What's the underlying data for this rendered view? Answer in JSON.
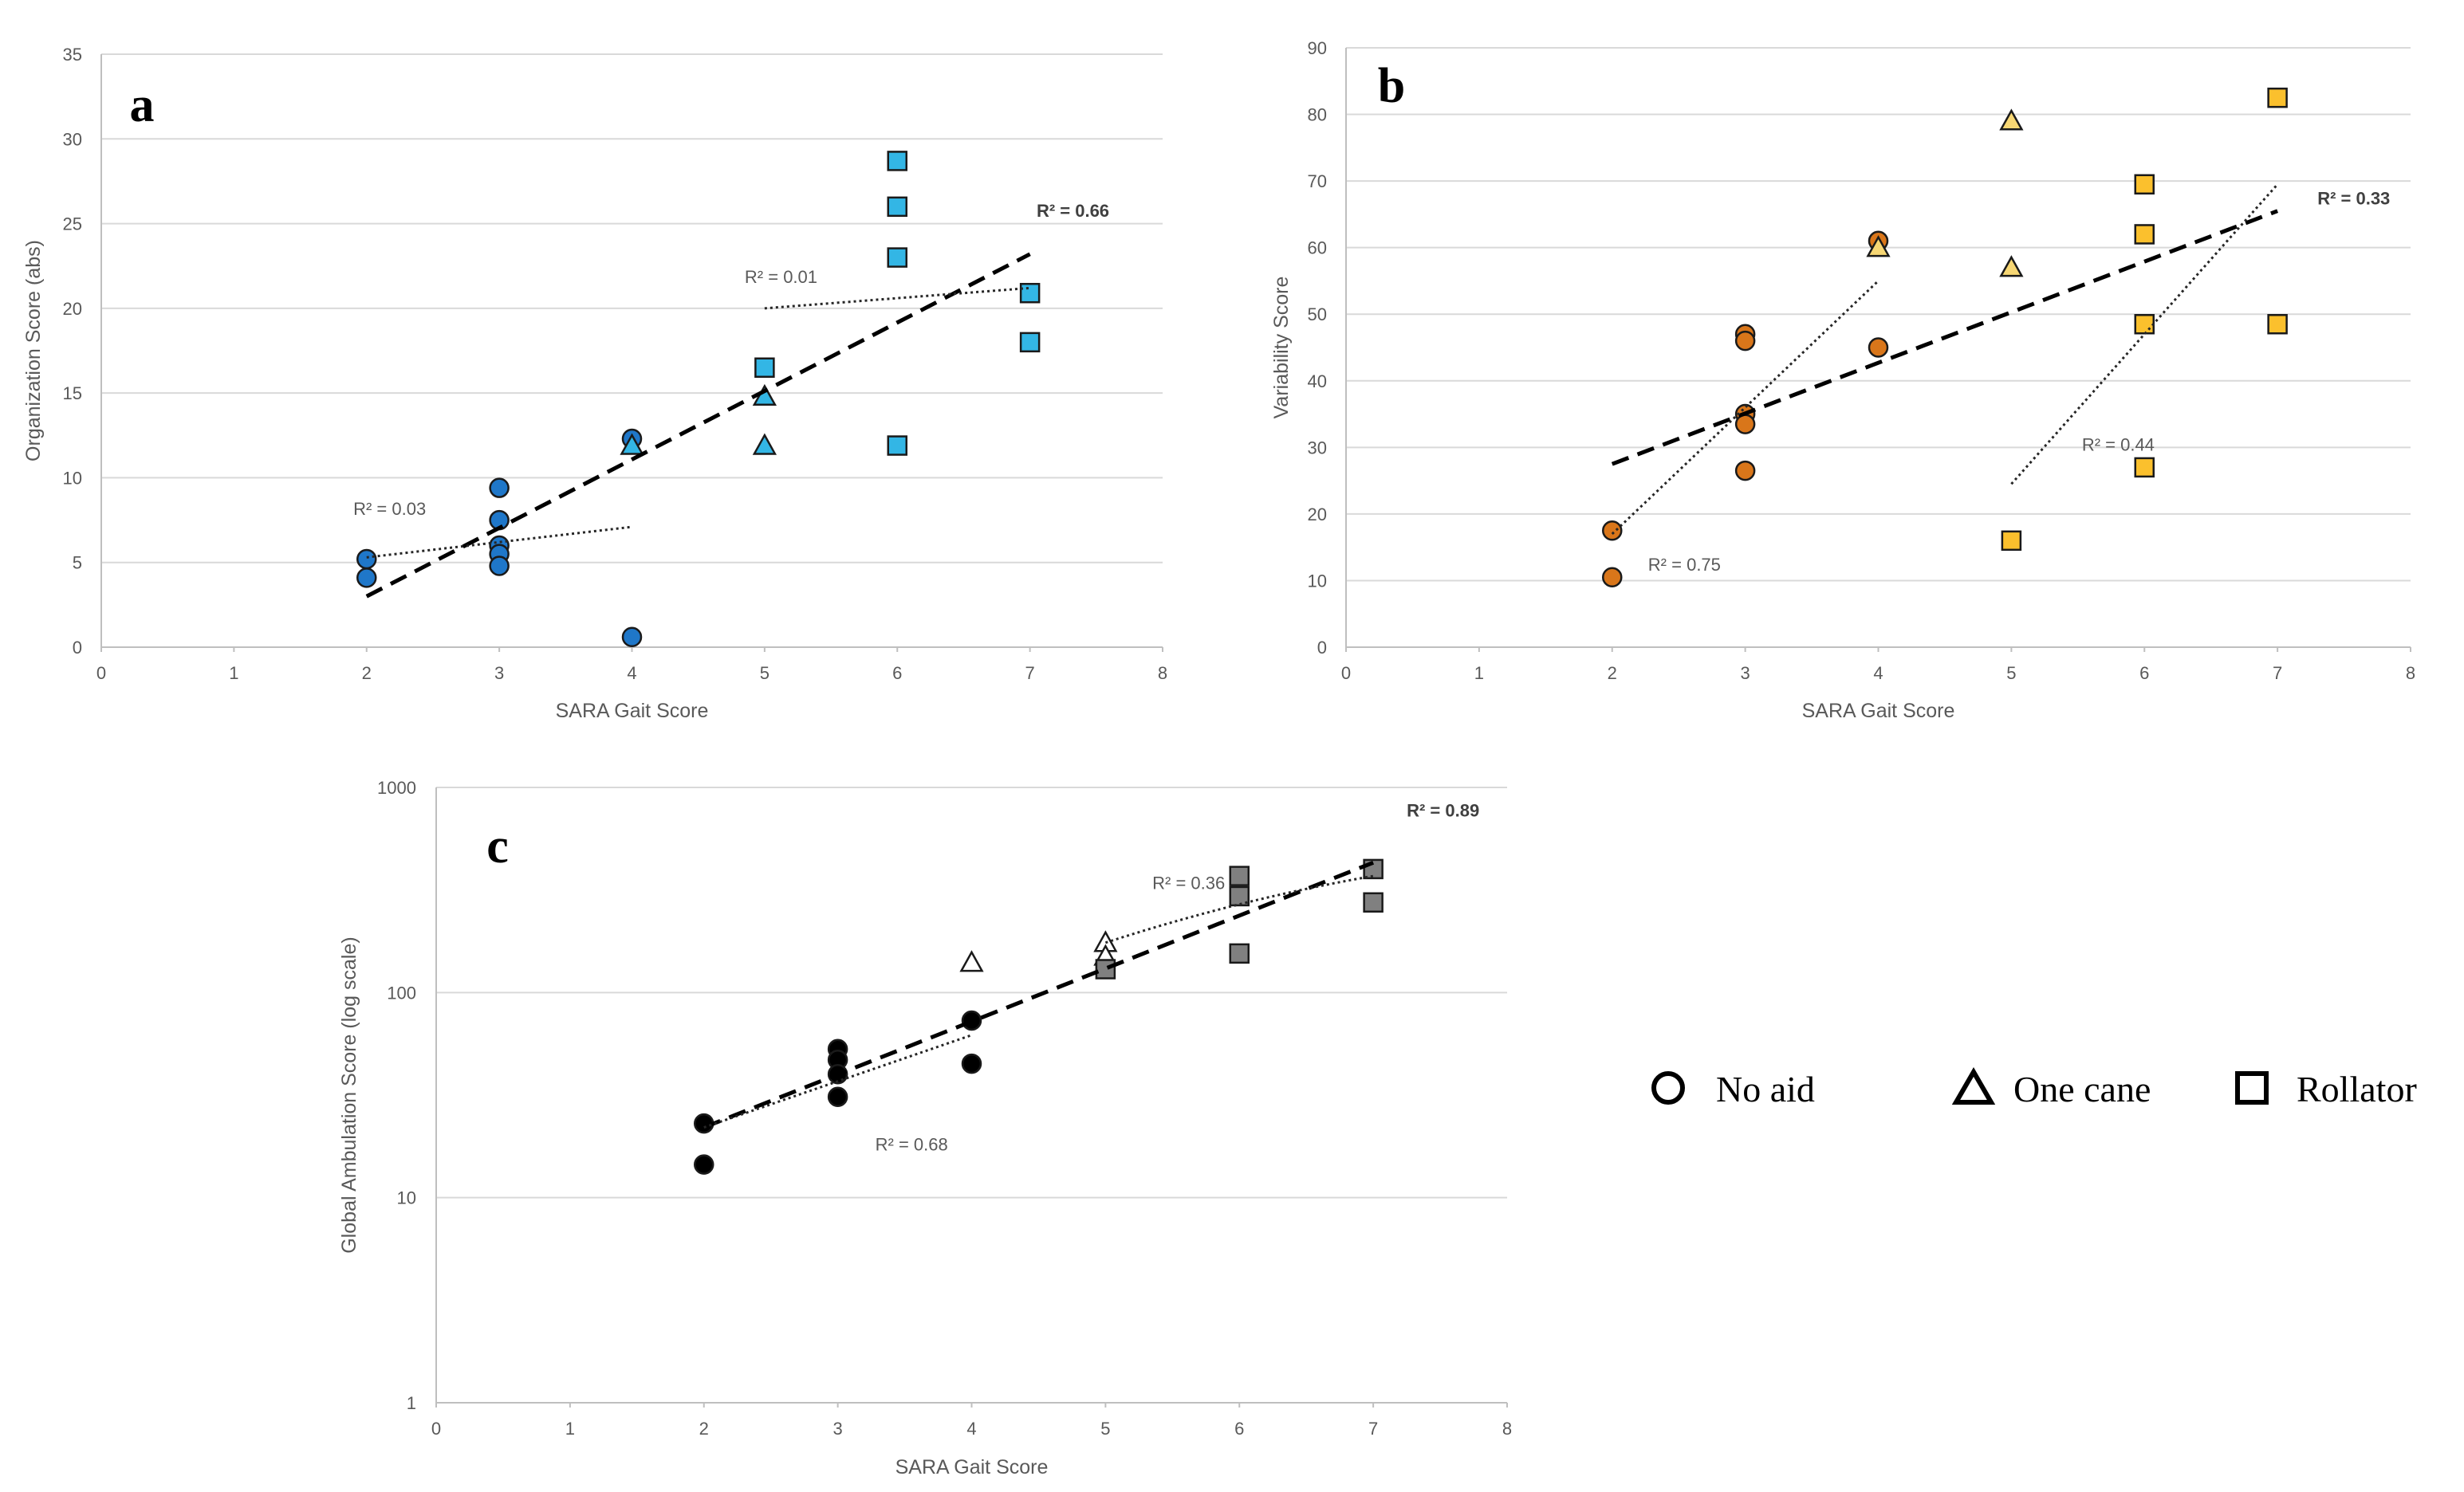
{
  "legend": {
    "items": [
      {
        "label": "No aid",
        "shape": "circle"
      },
      {
        "label": "One cane",
        "shape": "triangle"
      },
      {
        "label": "Rollator",
        "shape": "square"
      }
    ]
  },
  "chart_data": [
    {
      "panel": "a",
      "type": "scatter",
      "xlabel": "SARA Gait Score",
      "ylabel": "Organization Score (abs)",
      "xlim": [
        0,
        8
      ],
      "ylim": [
        0,
        35
      ],
      "xticks": [
        0,
        1,
        2,
        3,
        4,
        5,
        6,
        7,
        8
      ],
      "yticks": [
        0,
        5,
        10,
        15,
        20,
        25,
        30,
        35
      ],
      "yscale": "linear",
      "grid": true,
      "colors": {
        "no_aid": "#1f77c9",
        "one_cane": "#33b6e5",
        "rollator": "#33b6e5"
      },
      "series": [
        {
          "name": "No aid",
          "shape": "circle",
          "points": [
            [
              2,
              5.2
            ],
            [
              2,
              4.1
            ],
            [
              3,
              9.4
            ],
            [
              3,
              7.5
            ],
            [
              3,
              6.0
            ],
            [
              3,
              5.5
            ],
            [
              3,
              4.8
            ],
            [
              4,
              12.3
            ],
            [
              4,
              0.6
            ]
          ]
        },
        {
          "name": "One cane",
          "shape": "triangle",
          "points": [
            [
              4,
              11.9
            ],
            [
              5,
              14.8
            ],
            [
              5,
              11.9
            ]
          ]
        },
        {
          "name": "Rollator",
          "shape": "square",
          "points": [
            [
              5,
              16.5
            ],
            [
              6,
              28.7
            ],
            [
              6,
              26.0
            ],
            [
              6,
              23.0
            ],
            [
              6,
              11.9
            ],
            [
              7,
              20.9
            ],
            [
              7,
              18.0
            ]
          ]
        }
      ],
      "trendlines": [
        {
          "kind": "overall",
          "from": [
            2,
            3.0
          ],
          "to": [
            7,
            23.2
          ],
          "label": "R² = 0.66",
          "label_anchor": [
            7.05,
            25.4
          ]
        },
        {
          "kind": "no_aid",
          "from": [
            2,
            5.3
          ],
          "to": [
            4,
            7.1
          ],
          "label": "R² = 0.03",
          "label_anchor": [
            1.9,
            7.8
          ]
        },
        {
          "kind": "rollator",
          "from": [
            5,
            20.0
          ],
          "to": [
            7,
            21.2
          ],
          "label": "R² = 0.01",
          "label_anchor": [
            4.85,
            21.5
          ]
        }
      ]
    },
    {
      "panel": "b",
      "type": "scatter",
      "xlabel": "SARA Gait Score",
      "ylabel": "Variability Score",
      "xlim": [
        0,
        8
      ],
      "ylim": [
        0,
        90
      ],
      "xticks": [
        0,
        1,
        2,
        3,
        4,
        5,
        6,
        7,
        8
      ],
      "yticks": [
        0,
        10,
        20,
        30,
        40,
        50,
        60,
        70,
        80,
        90
      ],
      "yscale": "linear",
      "grid": true,
      "colors": {
        "no_aid": "#d9761a",
        "one_cane": "#f7d774",
        "rollator": "#fbc02d"
      },
      "series": [
        {
          "name": "No aid",
          "shape": "circle",
          "points": [
            [
              2,
              17.5
            ],
            [
              2,
              10.5
            ],
            [
              3,
              47.0
            ],
            [
              3,
              46.0
            ],
            [
              3,
              35.0
            ],
            [
              3,
              33.5
            ],
            [
              3,
              26.5
            ],
            [
              4,
              61.0
            ],
            [
              4,
              45.0
            ]
          ]
        },
        {
          "name": "One cane",
          "shape": "triangle",
          "points": [
            [
              4,
              60.0
            ],
            [
              5,
              79.0
            ],
            [
              5,
              57.0
            ]
          ]
        },
        {
          "name": "Rollator",
          "shape": "square",
          "points": [
            [
              5,
              16.0
            ],
            [
              6,
              69.5
            ],
            [
              6,
              62.0
            ],
            [
              6,
              48.5
            ],
            [
              6,
              27.0
            ],
            [
              7,
              82.5
            ],
            [
              7,
              48.5
            ]
          ]
        }
      ],
      "trendlines": [
        {
          "kind": "overall",
          "from": [
            2,
            27.5
          ],
          "to": [
            7,
            65.5
          ],
          "label": "R² = 0.33",
          "label_anchor": [
            7.3,
            66.5
          ]
        },
        {
          "kind": "no_aid",
          "from": [
            2,
            17.0
          ],
          "to": [
            4,
            55.0
          ],
          "label": "R² = 0.75",
          "label_anchor": [
            2.27,
            11.5
          ]
        },
        {
          "kind": "rollator",
          "from": [
            5,
            24.5
          ],
          "to": [
            7,
            69.5
          ],
          "label": "R² = 0.44",
          "label_anchor": [
            5.53,
            29.5
          ]
        }
      ]
    },
    {
      "panel": "c",
      "type": "scatter",
      "xlabel": "SARA Gait Score",
      "ylabel": "Global Ambulation Score (log scale)",
      "xlim": [
        0,
        8
      ],
      "ylim": [
        1,
        1000
      ],
      "xticks": [
        0,
        1,
        2,
        3,
        4,
        5,
        6,
        7,
        8
      ],
      "yticks": [
        1,
        10,
        100,
        1000
      ],
      "yscale": "log",
      "grid": true,
      "colors": {
        "no_aid": "#000000",
        "one_cane": "#ffffff",
        "rollator": "#808080"
      },
      "series": [
        {
          "name": "No aid",
          "shape": "circle",
          "points": [
            [
              2,
              23
            ],
            [
              2,
              14.5
            ],
            [
              3,
              53
            ],
            [
              3,
              47
            ],
            [
              3,
              40
            ],
            [
              3,
              31
            ],
            [
              4,
              73
            ],
            [
              4,
              45
            ]
          ]
        },
        {
          "name": "One cane",
          "shape": "triangle",
          "points": [
            [
              4,
              140
            ],
            [
              5,
              175
            ],
            [
              5,
              150
            ]
          ]
        },
        {
          "name": "Rollator",
          "shape": "square",
          "points": [
            [
              5,
              130
            ],
            [
              6,
              370
            ],
            [
              6,
              295
            ],
            [
              6,
              155
            ],
            [
              7,
              400
            ],
            [
              7,
              275
            ]
          ]
        }
      ],
      "trendlines": [
        {
          "kind": "overall",
          "from": [
            2,
            22
          ],
          "to": [
            7,
            430
          ],
          "label": "R² = 0.89",
          "label_anchor": [
            7.25,
            720
          ]
        },
        {
          "kind": "no_aid",
          "from": [
            2,
            22
          ],
          "to": [
            4,
            62
          ],
          "label": "R² = 0.68",
          "label_anchor": [
            3.28,
            17.0
          ]
        },
        {
          "kind": "rollator",
          "from": [
            5,
            175
          ],
          "to": [
            7,
            370
          ],
          "label": "R² = 0.36",
          "label_anchor": [
            5.35,
            320
          ]
        }
      ]
    }
  ]
}
